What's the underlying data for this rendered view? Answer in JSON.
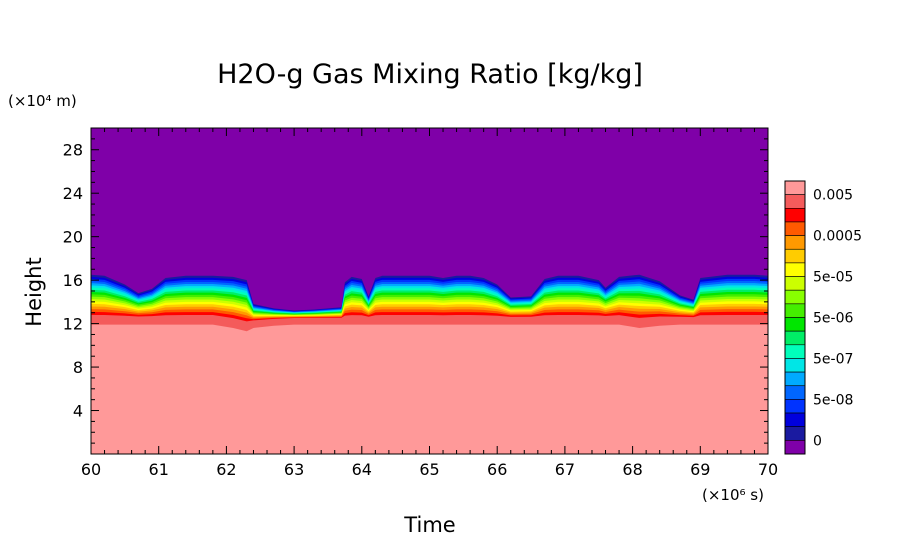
{
  "chart_data": {
    "type": "heatmap",
    "title": "H2O-g Gas Mixing Ratio [kg/kg]",
    "xlabel": "Time",
    "ylabel": "Height",
    "x_unit": "(×10⁶ s)",
    "y_unit": "(×10⁴ m)",
    "xlim": [
      60,
      70
    ],
    "ylim": [
      0,
      30
    ],
    "x_ticks": [
      60,
      61,
      62,
      63,
      64,
      65,
      66,
      67,
      68,
      69,
      70
    ],
    "y_ticks": [
      4,
      8,
      12,
      16,
      20,
      24,
      28
    ],
    "colorbar": {
      "scale": "log",
      "labels": [
        "0.005",
        "0.0005",
        "5e-05",
        "5e-06",
        "5e-07",
        "5e-08",
        "0"
      ],
      "colors": [
        "#ff9999",
        "#f45b5b",
        "#ff0000",
        "#ff5a00",
        "#ff9900",
        "#ffcc00",
        "#ffff00",
        "#ccff00",
        "#88ff00",
        "#44ee00",
        "#00e600",
        "#00ee66",
        "#00ffbb",
        "#00e6e6",
        "#00aaff",
        "#0066ff",
        "#0033ff",
        "#0000dd",
        "#1a1aa0",
        "#7f00a8"
      ]
    },
    "boundaries": {
      "time": [
        60,
        60.2,
        60.5,
        60.7,
        60.9,
        61.1,
        61.4,
        61.8,
        62.1,
        62.3,
        62.4,
        62.7,
        63.0,
        63.3,
        63.7,
        63.75,
        63.85,
        64.0,
        64.1,
        64.2,
        64.3,
        64.7,
        65.0,
        65.2,
        65.4,
        65.6,
        65.8,
        66.0,
        66.2,
        66.5,
        66.7,
        66.9,
        67.2,
        67.5,
        67.6,
        67.8,
        68.1,
        68.4,
        68.7,
        68.9,
        69.0,
        69.4,
        69.8,
        70
      ],
      "moisture_top": [
        16.5,
        16.4,
        15.6,
        14.8,
        15.2,
        16.2,
        16.4,
        16.4,
        16.3,
        16.0,
        13.8,
        13.4,
        13.2,
        13.3,
        13.5,
        15.8,
        16.3,
        16.1,
        14.5,
        16.2,
        16.4,
        16.4,
        16.4,
        16.2,
        16.4,
        16.4,
        16.2,
        15.6,
        14.4,
        14.5,
        16.1,
        16.4,
        16.4,
        16.0,
        15.3,
        16.3,
        16.5,
        15.9,
        14.6,
        14.2,
        16.2,
        16.5,
        16.5,
        16.4
      ],
      "saturated_top": [
        11.9,
        11.9,
        11.9,
        11.9,
        11.9,
        11.9,
        11.9,
        11.9,
        11.6,
        11.3,
        11.6,
        11.8,
        11.9,
        11.9,
        11.9,
        11.9,
        11.9,
        11.9,
        11.9,
        11.9,
        11.9,
        11.9,
        11.9,
        11.9,
        11.9,
        11.9,
        11.9,
        11.9,
        11.9,
        11.9,
        11.9,
        11.9,
        11.9,
        11.9,
        11.9,
        11.9,
        11.6,
        11.8,
        11.9,
        11.9,
        11.9,
        11.9,
        11.9,
        11.9
      ]
    }
  }
}
